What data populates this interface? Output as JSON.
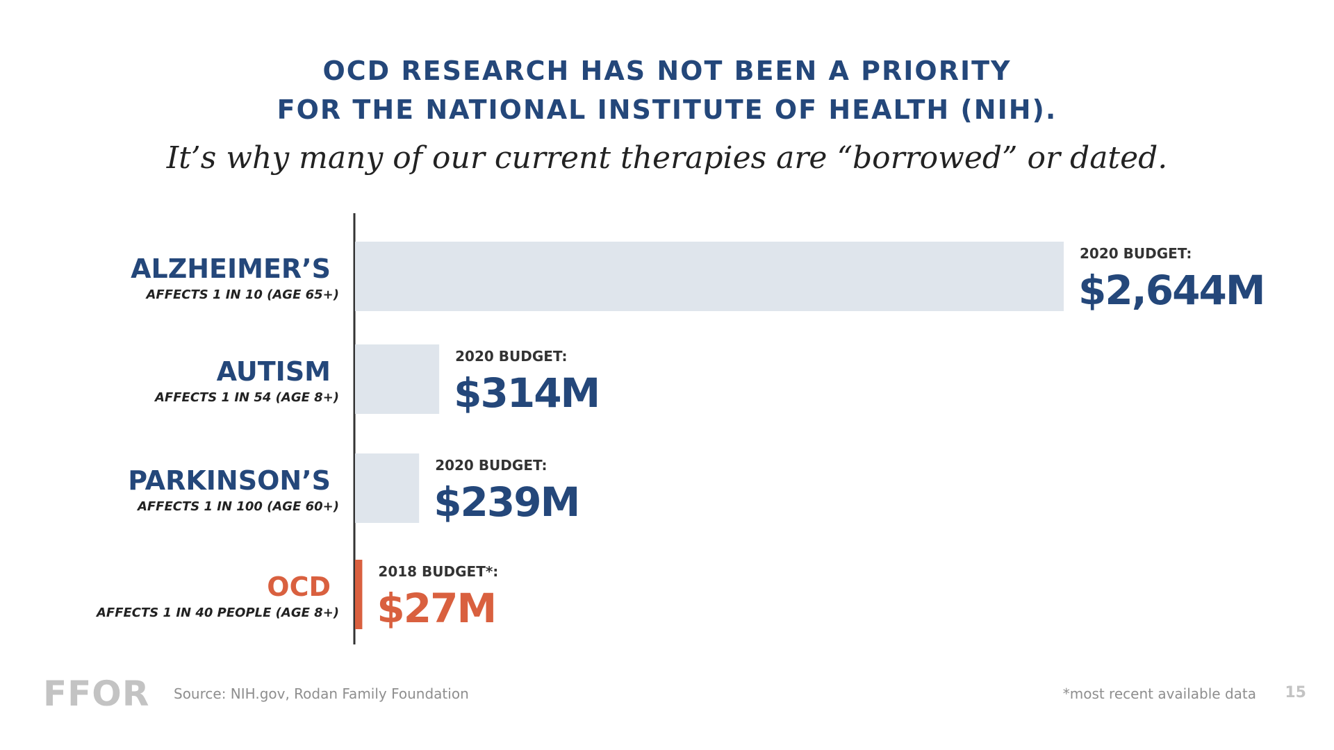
{
  "slide": {
    "title_line1": "OCD RESEARCH HAS NOT BEEN A PRIORITY",
    "title_line2": "FOR THE NATIONAL INSTITUTE OF HEALTH (NIH).",
    "subtitle": "It’s why many of our current therapies are “borrowed” or dated.",
    "footer": {
      "logo": "FFOR",
      "source": "Source: NIH.gov, Rodan Family Foundation",
      "note": "*most recent available data",
      "page_number": "15"
    }
  },
  "chart_data": {
    "type": "bar",
    "orientation": "horizontal",
    "categories": [
      "ALZHEIMER’S",
      "AUTISM",
      "PARKINSON’S",
      "OCD"
    ],
    "category_notes": [
      "AFFECTS 1 IN 10 (AGE 65+)",
      "AFFECTS 1 IN 54 (AGE 8+)",
      "AFFECTS 1 IN 100 (AGE 60+)",
      "AFFECTS 1 IN 40 PEOPLE (AGE 8+)"
    ],
    "values": [
      2644,
      314,
      239,
      27
    ],
    "value_labels": [
      "$2,644M",
      "$314M",
      "$239M",
      "$27M"
    ],
    "value_captions": [
      "2020 BUDGET:",
      "2020 BUDGET:",
      "2020 BUDGET:",
      "2018 BUDGET*:"
    ],
    "highlighted_category": "OCD",
    "colors": {
      "primary": "#24477a",
      "highlight": "#d9603f",
      "bar_default": "#dfe5ec",
      "axis": "#333333",
      "caption": "#333333"
    },
    "grid": false,
    "legend": "none"
  }
}
